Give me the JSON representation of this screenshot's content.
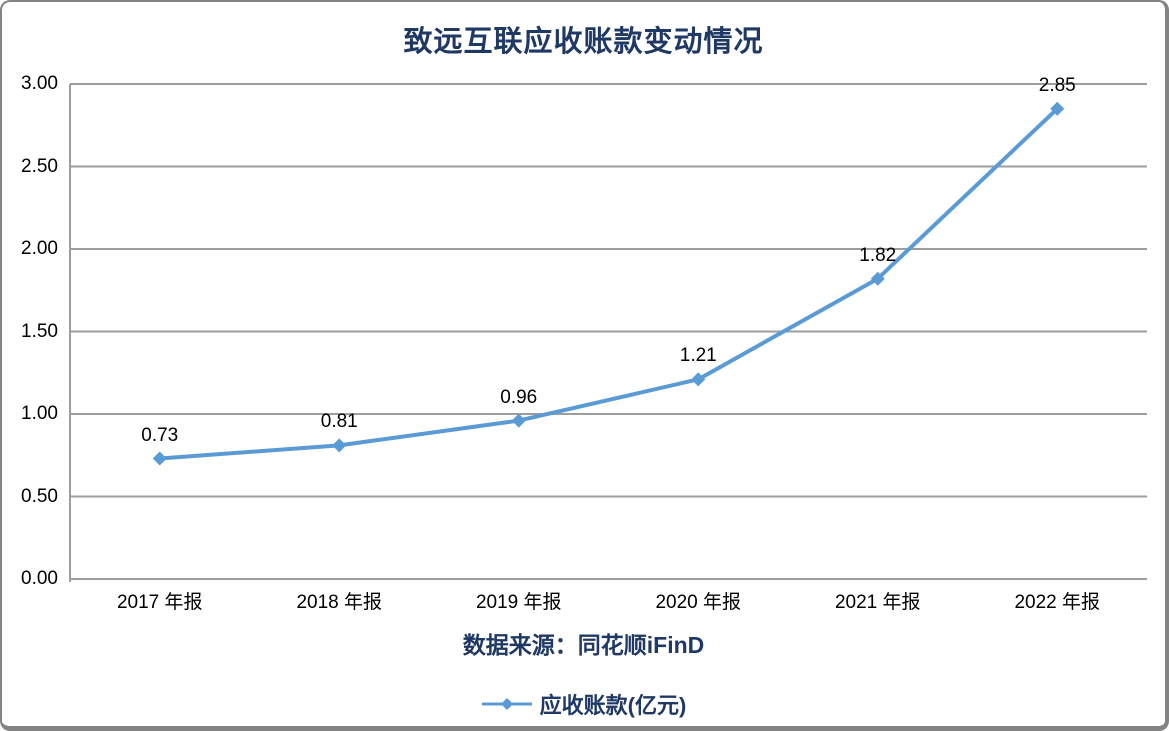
{
  "chart_data": {
    "type": "line",
    "title": "致远互联应收账款变动情况",
    "categories": [
      "2017 年报",
      "2018 年报",
      "2019 年报",
      "2020 年报",
      "2021 年报",
      "2022 年报"
    ],
    "series": [
      {
        "name": "应收账款(亿元)",
        "values": [
          0.73,
          0.81,
          0.96,
          1.21,
          1.82,
          2.85
        ]
      }
    ],
    "data_labels": [
      "0.73",
      "0.81",
      "0.96",
      "1.21",
      "1.82",
      "2.85"
    ],
    "ytick_labels": [
      "0.00",
      "0.50",
      "1.00",
      "1.50",
      "2.00",
      "2.50",
      "3.00"
    ],
    "ylim": [
      0,
      3
    ],
    "ytick_step": 0.5,
    "grid": "horizontal",
    "legend_position": "bottom",
    "marker": "diamond",
    "source_note": "数据来源：同花顺iFinD",
    "colors": {
      "line": "#5B9BD5",
      "title_text": "#1F3864",
      "source_text": "#1F3864",
      "legend_text": "#1F3864",
      "grid": "#9D9D9D",
      "axis": "#9D9D9D",
      "tick_text": "#000000",
      "data_label_text": "#000000"
    }
  }
}
